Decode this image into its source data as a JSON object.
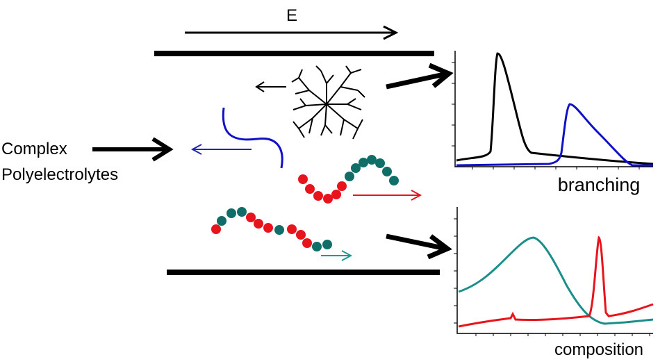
{
  "labels": {
    "field": "E",
    "input": [
      "Complex",
      "Polyelectrolytes"
    ],
    "plot_top": "branching",
    "plot_bottom": "composition"
  }
}
